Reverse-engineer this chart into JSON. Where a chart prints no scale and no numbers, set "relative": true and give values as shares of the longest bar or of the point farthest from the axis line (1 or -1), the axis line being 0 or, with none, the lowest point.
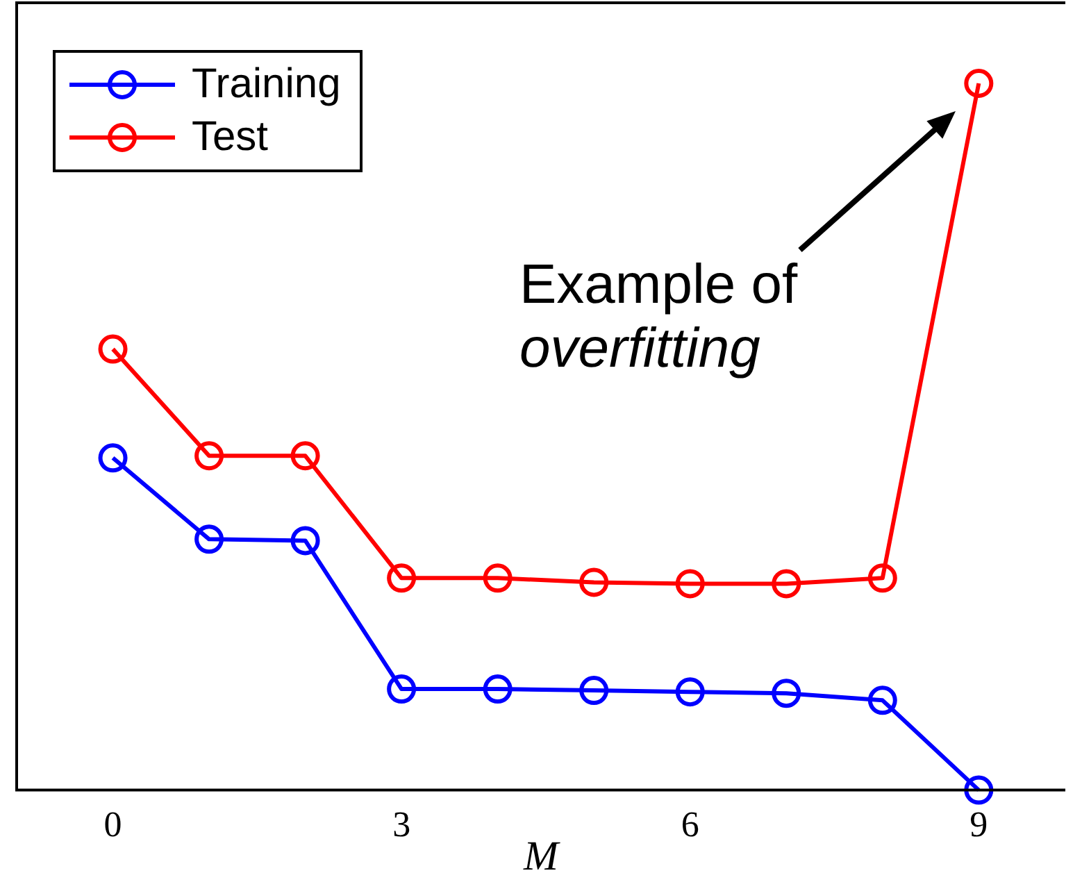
{
  "chart_data": {
    "type": "line",
    "relative": true,
    "xlabel": "M",
    "x": [
      0,
      1,
      2,
      3,
      4,
      5,
      6,
      7,
      8,
      9
    ],
    "xlim": [
      -1,
      9.9
    ],
    "xticks": [
      0,
      3,
      6,
      9
    ],
    "marker": "circle",
    "line_style": "solid",
    "grid": false,
    "legend": "top left",
    "series": [
      {
        "name": "Training",
        "color": "#0000ff",
        "values": [
          0.47,
          0.355,
          0.353,
          0.143,
          0.143,
          0.141,
          0.139,
          0.137,
          0.127,
          0
        ]
      },
      {
        "name": "Test",
        "color": "#ff0000",
        "values": [
          0.624,
          0.473,
          0.473,
          0.3,
          0.3,
          0.294,
          0.292,
          0.292,
          0.3,
          1
        ]
      }
    ],
    "annotations": [
      "Example of overfitting"
    ]
  }
}
